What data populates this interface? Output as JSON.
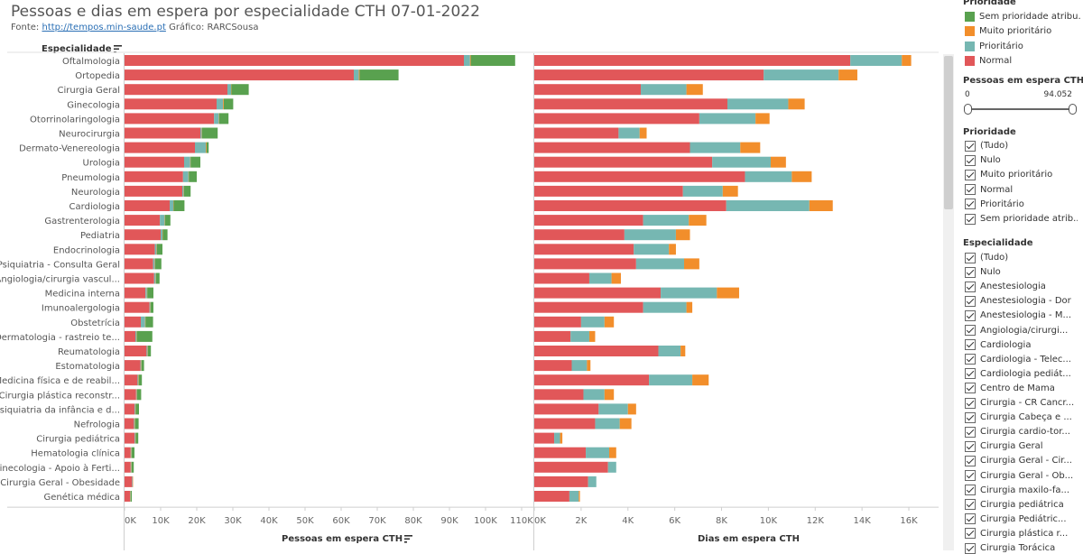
{
  "title": "Pessoas e dias em espera por especialidade CTH 07-01-2022",
  "source": {
    "prefix": "Fonte: ",
    "link": "http://tempos.min-saude.pt",
    "suffix": " Gráfico: RARCSousa"
  },
  "colors": {
    "normal": "#e15759",
    "prioritario": "#76b7b2",
    "muito": "#f28e2b",
    "sem": "#59a14f"
  },
  "chart_data": {
    "type": "bar",
    "orientation": "horizontal",
    "stacked": true,
    "row_header": "Especialidade",
    "stack_order": [
      "Normal",
      "Prioritário",
      "Muito prioritário",
      "Sem prioridade atribuída"
    ],
    "categories": [
      "Oftalmologia",
      "Ortopedia",
      "Cirurgia Geral",
      "Ginecologia",
      "Otorrinolaringologia",
      "Neurocirurgia",
      "Dermato-Venereologia",
      "Urologia",
      "Pneumologia",
      "Neurologia",
      "Cardiologia",
      "Gastrenterologia",
      "Pediatria",
      "Endocrinologia",
      "Psiquiatria - Consulta Geral",
      "Angiologia/cirurgia vascul...",
      "Medicina interna",
      "Imunoalergologia",
      "Obstetrícia",
      "Dermatologia - rastreio te...",
      "Reumatologia",
      "Estomatologia",
      "Medicina física e de reabil...",
      "Cirurgia plástica reconstr...",
      "Psiquiatria da infância e d...",
      "Nefrologia",
      "Cirurgia pediátrica",
      "Hematologia clínica",
      "Ginecologia - Apoio à Ferti...",
      "Cirurgia Geral - Obesidade",
      "Genética médica"
    ],
    "panels": [
      {
        "xlabel": "Pessoas em espera CTH",
        "xlim": [
          0,
          110000
        ],
        "ticks": [
          0,
          10000,
          20000,
          30000,
          40000,
          50000,
          60000,
          70000,
          80000,
          90000,
          100000,
          110000
        ],
        "tick_labels": [
          "0K",
          "10K",
          "20K",
          "30K",
          "40K",
          "50K",
          "60K",
          "70K",
          "80K",
          "90K",
          "100K",
          "110K"
        ],
        "series": [
          {
            "name": "Normal",
            "values": [
              94000,
              63500,
              28500,
              25500,
              24800,
              21000,
              19500,
              16500,
              16200,
              16000,
              12500,
              9800,
              10000,
              8400,
              7900,
              8200,
              5800,
              6900,
              4500,
              3000,
              6100,
              4400,
              3600,
              3200,
              2800,
              2600,
              2800,
              1700,
              1700,
              2100,
              1500
            ]
          },
          {
            "name": "Prioritário",
            "values": [
              1700,
              1400,
              1000,
              1800,
              1300,
              400,
              3000,
              1700,
              1500,
              400,
              1000,
              1300,
              500,
              500,
              500,
              400,
              400,
              200,
              1200,
              300,
              300,
              200,
              200,
              200,
              200,
              200,
              200,
              150,
              150,
              150,
              100
            ]
          },
          {
            "name": "Muito prioritário",
            "values": [
              200,
              200,
              100,
              200,
              100,
              100,
              200,
              100,
              100,
              100,
              100,
              100,
              100,
              100,
              100,
              100,
              100,
              100,
              100,
              100,
              100,
              100,
              100,
              100,
              100,
              100,
              100,
              100,
              100,
              100,
              100
            ]
          },
          {
            "name": "Sem prioridade atribuída",
            "values": [
              12300,
              10800,
              4800,
              2600,
              2600,
              4300,
              600,
              2700,
              2200,
              1800,
              3000,
              1500,
              1300,
              1500,
              1700,
              1000,
              1700,
              800,
              2100,
              4300,
              800,
              700,
              900,
              1100,
              900,
              1000,
              700,
              800,
              600,
              0,
              300
            ]
          }
        ]
      },
      {
        "xlabel": "Dias em espera CTH",
        "xlim": [
          0,
          16500
        ],
        "ticks": [
          0,
          2000,
          4000,
          6000,
          8000,
          10000,
          12000,
          14000,
          16000
        ],
        "tick_labels": [
          "0K",
          "2K",
          "4K",
          "6K",
          "8K",
          "10K",
          "12K",
          "14K",
          "16K"
        ],
        "series": [
          {
            "name": "Normal",
            "values": [
              13500,
              9800,
              4550,
              8250,
              7050,
              3600,
              6650,
              7600,
              9000,
              6350,
              8200,
              4650,
              3850,
              4250,
              4350,
              2350,
              5400,
              4650,
              2000,
              1550,
              5300,
              1600,
              4900,
              2100,
              2750,
              2600,
              850,
              2200,
              3150,
              2300,
              1500
            ]
          },
          {
            "name": "Prioritário",
            "values": [
              2200,
              3200,
              1950,
              2600,
              2400,
              900,
              2150,
              2500,
              2000,
              1700,
              3550,
              1950,
              2200,
              1500,
              2050,
              950,
              2400,
              1850,
              1000,
              800,
              950,
              650,
              1850,
              900,
              1250,
              1050,
              250,
              1000,
              350,
              350,
              400
            ]
          },
          {
            "name": "Muito prioritário",
            "values": [
              400,
              800,
              700,
              700,
              600,
              300,
              850,
              650,
              850,
              650,
              1000,
              750,
              600,
              300,
              650,
              400,
              950,
              250,
              400,
              250,
              200,
              150,
              700,
              400,
              350,
              500,
              100,
              300,
              0,
              0,
              50
            ]
          },
          {
            "name": "Sem prioridade atribuída",
            "values": [
              0,
              0,
              0,
              0,
              0,
              0,
              0,
              0,
              0,
              0,
              0,
              0,
              0,
              0,
              0,
              0,
              0,
              0,
              0,
              0,
              0,
              0,
              0,
              0,
              0,
              0,
              0,
              0,
              0,
              0,
              0
            ]
          }
        ]
      }
    ]
  },
  "panel": {
    "legend_title": "Prioridade",
    "legend": [
      {
        "label": "Sem prioridade atribu...",
        "color": "#59a14f"
      },
      {
        "label": "Muito prioritário",
        "color": "#f28e2b"
      },
      {
        "label": "Prioritário",
        "color": "#76b7b2"
      },
      {
        "label": "Normal",
        "color": "#e15759"
      }
    ],
    "slider": {
      "title": "Pessoas em espera CTH",
      "min_label": "0",
      "max_label": "94.052"
    },
    "prioridade_filter": {
      "title": "Prioridade",
      "items": [
        "(Tudo)",
        "Nulo",
        "Muito prioritário",
        "Normal",
        "Prioritário",
        "Sem prioridade atrib..."
      ]
    },
    "especialidade_filter": {
      "title": "Especialidade",
      "items": [
        "(Tudo)",
        "Nulo",
        "Anestesiologia",
        "Anestesiologia - Dor",
        "Anestesiologia - M...",
        "Angiologia/cirurgi...",
        "Cardiologia",
        "Cardiologia - Telec...",
        "Cardiologia pediát...",
        "Centro de Mama",
        "Cirurgia - CR Cancr...",
        "Cirurgia Cabeça e ...",
        "Cirurgia cardio-tor...",
        "Cirurgia Geral",
        "Cirurgia Geral - Cir...",
        "Cirurgia Geral - Ob...",
        "Cirurgia maxilo-fa...",
        "Cirurgia pediátrica",
        "Cirurgia Pediátric...",
        "Cirurgia plástica r...",
        "Cirurgia Torácica"
      ]
    }
  }
}
